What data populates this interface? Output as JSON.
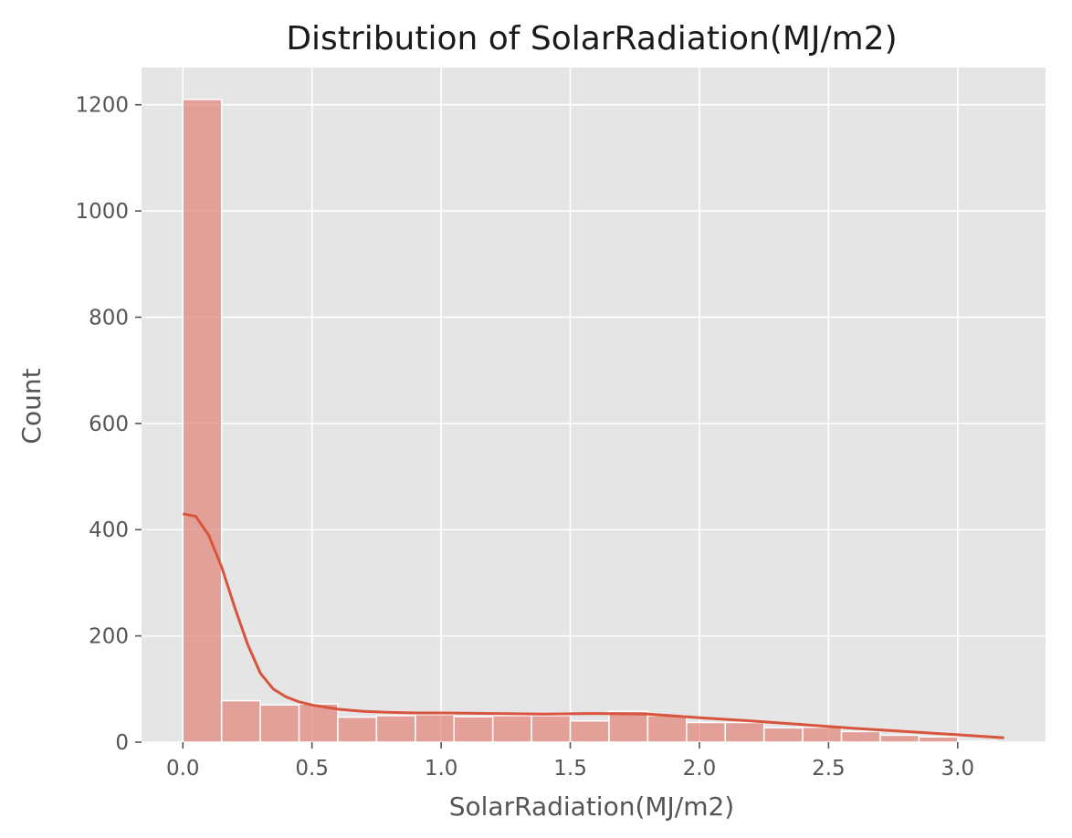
{
  "chart_data": {
    "type": "histogram",
    "title": "Distribution of SolarRadiation(MJ/m2)",
    "xlabel": "SolarRadiation(MJ/m2)",
    "ylabel": "Count",
    "xlim": [
      -0.16,
      3.34
    ],
    "ylim": [
      0,
      1270
    ],
    "xticks": [
      "0.0",
      "0.5",
      "1.0",
      "1.5",
      "2.0",
      "2.5",
      "3.0"
    ],
    "yticks": [
      "0",
      "200",
      "400",
      "600",
      "800",
      "1000",
      "1200"
    ],
    "grid": true,
    "bar_color": "#e2857a",
    "line_color": "#d8553d",
    "background": "#e5e5e5",
    "bins": [
      {
        "x0": 0.0,
        "x1": 0.15,
        "count": 1210
      },
      {
        "x0": 0.15,
        "x1": 0.3,
        "count": 78
      },
      {
        "x0": 0.3,
        "x1": 0.45,
        "count": 70
      },
      {
        "x0": 0.45,
        "x1": 0.6,
        "count": 72
      },
      {
        "x0": 0.6,
        "x1": 0.75,
        "count": 47
      },
      {
        "x0": 0.75,
        "x1": 0.9,
        "count": 50
      },
      {
        "x0": 0.9,
        "x1": 1.05,
        "count": 52
      },
      {
        "x0": 1.05,
        "x1": 1.2,
        "count": 48
      },
      {
        "x0": 1.2,
        "x1": 1.35,
        "count": 50
      },
      {
        "x0": 1.35,
        "x1": 1.5,
        "count": 50
      },
      {
        "x0": 1.5,
        "x1": 1.65,
        "count": 40
      },
      {
        "x0": 1.65,
        "x1": 1.8,
        "count": 58
      },
      {
        "x0": 1.8,
        "x1": 1.95,
        "count": 50
      },
      {
        "x0": 1.95,
        "x1": 2.1,
        "count": 37
      },
      {
        "x0": 2.1,
        "x1": 2.25,
        "count": 37
      },
      {
        "x0": 2.25,
        "x1": 2.4,
        "count": 27
      },
      {
        "x0": 2.4,
        "x1": 2.55,
        "count": 28
      },
      {
        "x0": 2.55,
        "x1": 2.7,
        "count": 20
      },
      {
        "x0": 2.7,
        "x1": 2.85,
        "count": 13
      },
      {
        "x0": 2.85,
        "x1": 3.0,
        "count": 10
      },
      {
        "x0": 3.0,
        "x1": 3.15,
        "count": 2
      }
    ],
    "kde": {
      "x": [
        0.0,
        0.05,
        0.1,
        0.15,
        0.2,
        0.25,
        0.3,
        0.35,
        0.4,
        0.45,
        0.5,
        0.6,
        0.7,
        0.8,
        0.9,
        1.0,
        1.2,
        1.4,
        1.6,
        1.8,
        2.0,
        2.2,
        2.4,
        2.6,
        2.8,
        3.0,
        3.18
      ],
      "y": [
        430,
        425,
        390,
        330,
        255,
        185,
        130,
        100,
        85,
        76,
        70,
        62,
        58,
        56,
        55,
        55,
        54,
        53,
        54,
        53,
        46,
        40,
        33,
        26,
        20,
        14,
        8
      ]
    }
  }
}
